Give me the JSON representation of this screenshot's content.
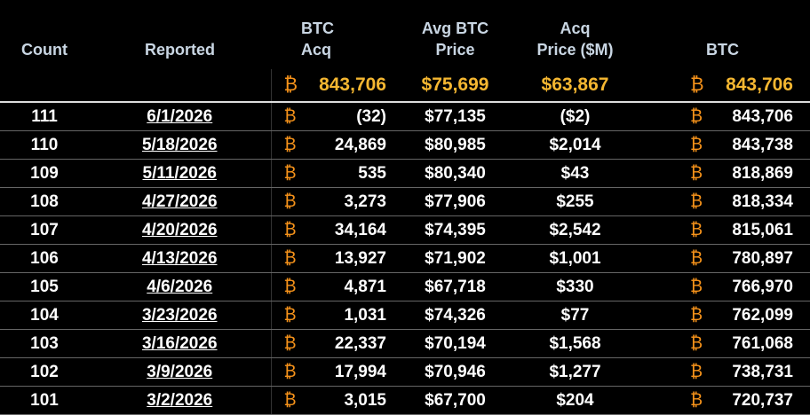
{
  "currency_symbol": "₿",
  "table": {
    "header": [
      "Count",
      "Reported",
      "BTC\nAcq",
      "Avg BTC\nPrice",
      "Acq\nPrice ($M)",
      "BTC"
    ],
    "summary": {
      "btc_acq": "843,706",
      "avg_price": "$75,699",
      "acq_price": "$63,867",
      "btc": "843,706"
    },
    "rows": [
      [
        111,
        "6/1/2026",
        "(32)",
        "$77,135",
        "($2)",
        "843,706"
      ],
      [
        110,
        "5/18/2026",
        "24,869",
        "$80,985",
        "$2,014",
        "843,738"
      ],
      [
        109,
        "5/11/2026",
        "535",
        "$80,340",
        "$43",
        "818,869"
      ],
      [
        108,
        "4/27/2026",
        "3,273",
        "$77,906",
        "$255",
        "818,334"
      ],
      [
        107,
        "4/20/2026",
        "34,164",
        "$74,395",
        "$2,542",
        "815,061"
      ],
      [
        106,
        "4/13/2026",
        "13,927",
        "$71,902",
        "$1,001",
        "780,897"
      ],
      [
        105,
        "4/6/2026",
        "4,871",
        "$67,718",
        "$330",
        "766,970"
      ],
      [
        104,
        "3/23/2026",
        "1,031",
        "$74,326",
        "$77",
        "762,099"
      ],
      [
        103,
        "3/16/2026",
        "22,337",
        "$70,194",
        "$1,568",
        "761,068"
      ],
      [
        102,
        "3/9/2026",
        "17,994",
        "$70,946",
        "$1,277",
        "738,731"
      ],
      [
        101,
        "3/2/2026",
        "3,015",
        "$67,700",
        "$204",
        "720,737"
      ]
    ]
  }
}
